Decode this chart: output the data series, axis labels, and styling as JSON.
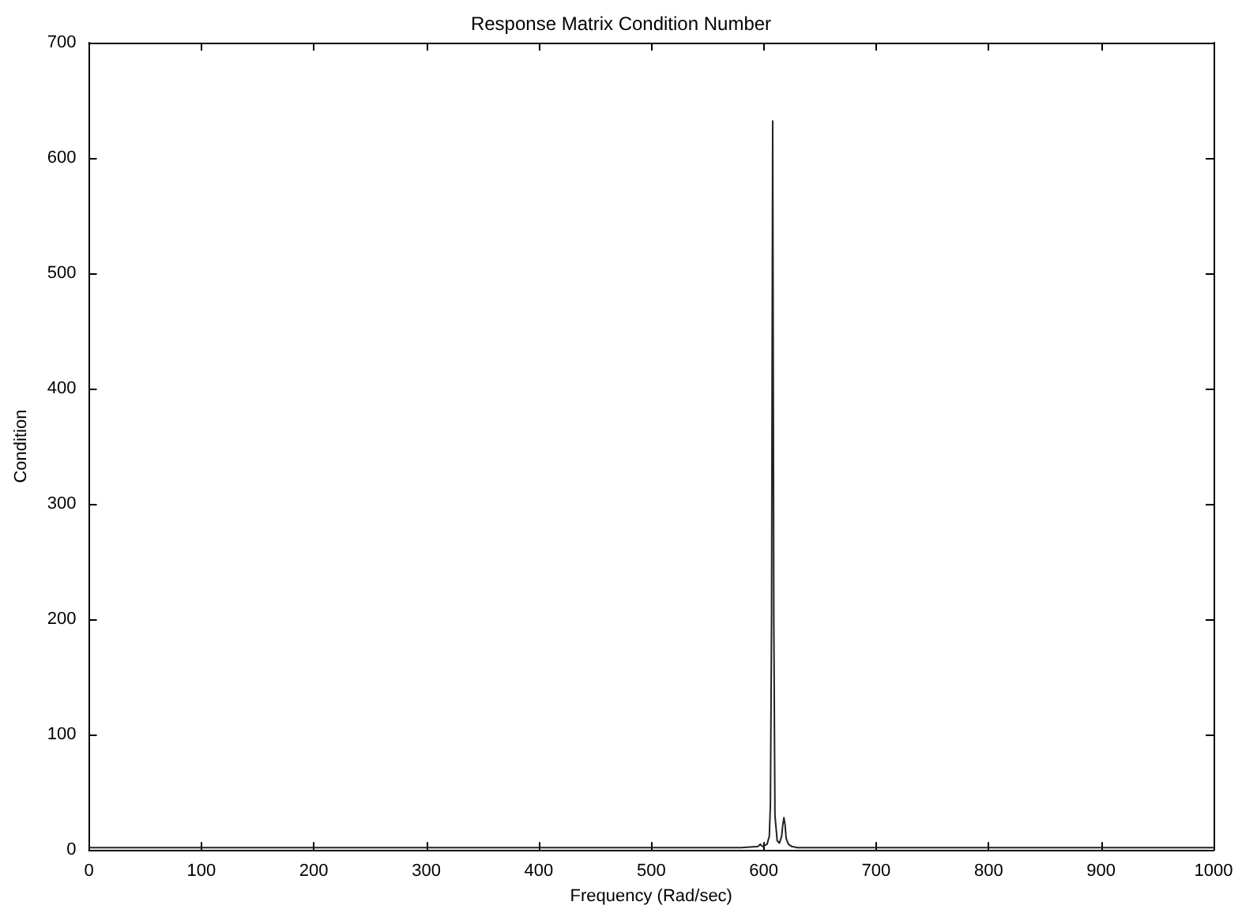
{
  "chart_data": {
    "type": "line",
    "title": "Response Matrix Condition Number",
    "xlabel": "Frequency (Rad/sec)",
    "ylabel": "Condition",
    "x": [
      0,
      100,
      200,
      300,
      400,
      500,
      580,
      595,
      597,
      599,
      603,
      605,
      606,
      607,
      608,
      609,
      610,
      612,
      614,
      616,
      617,
      618,
      619,
      620,
      622,
      625,
      630,
      640,
      700,
      800,
      900,
      1000
    ],
    "series": [
      {
        "color": "#222222",
        "values": [
          2,
          2,
          2,
          2,
          2,
          2,
          2,
          3,
          5,
          3,
          5,
          12,
          40,
          200,
          632,
          200,
          30,
          8,
          6,
          12,
          22,
          28,
          22,
          10,
          5,
          3,
          2,
          2,
          2,
          2,
          2,
          2
        ]
      }
    ],
    "xlim": [
      0,
      1000
    ],
    "xticks": [
      0,
      100,
      200,
      300,
      400,
      500,
      600,
      700,
      800,
      900,
      1000
    ],
    "ylim": [
      0,
      700
    ],
    "yticks": [
      0,
      100,
      200,
      300,
      400,
      500,
      600,
      700
    ],
    "grid": false,
    "marker": "none",
    "line_style": "solid"
  }
}
